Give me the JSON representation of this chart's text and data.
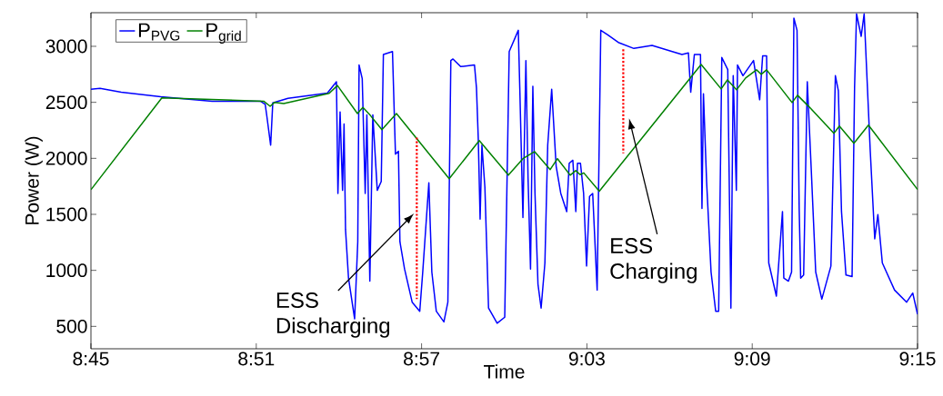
{
  "chart_data": {
    "type": "line",
    "xlabel": "Time",
    "ylabel": "Power (W)",
    "xlim": [
      8.75,
      9.25
    ],
    "ylim": [
      300,
      3300
    ],
    "xticks": [
      {
        "value": 8.75,
        "label": "8:45"
      },
      {
        "value": 8.85,
        "label": "8:51"
      },
      {
        "value": 8.95,
        "label": "8:57"
      },
      {
        "value": 9.05,
        "label": "9:03"
      },
      {
        "value": 9.15,
        "label": "9:09"
      },
      {
        "value": 9.25,
        "label": "9:15"
      }
    ],
    "yticks": [
      500,
      1000,
      1500,
      2000,
      2500,
      3000
    ],
    "legend": "top left",
    "series": [
      {
        "name": "P$_{PVG}$",
        "color": "#0000ff",
        "x": [
          8.75,
          8.7555,
          8.7683,
          8.7922,
          8.8233,
          8.8527,
          8.8554,
          8.8563,
          8.8587,
          8.86,
          8.8692,
          8.893,
          8.8985,
          8.8994,
          8.9007,
          8.9022,
          8.9031,
          8.904,
          8.9058,
          8.9095,
          8.9114,
          8.9122,
          8.9141,
          8.9159,
          8.9169,
          8.9187,
          8.9205,
          8.9232,
          8.9256,
          8.9269,
          8.9324,
          8.9342,
          8.936,
          8.9369,
          8.9397,
          8.9443,
          8.9489,
          8.9507,
          8.9544,
          8.9562,
          8.9589,
          8.9635,
          8.9659,
          8.9677,
          8.969,
          8.9736,
          8.982,
          8.9832,
          8.9843,
          8.9854,
          8.9865,
          8.9883,
          8.9905,
          8.9957,
          9.0003,
          9.003,
          9.0085,
          9.0094,
          9.0113,
          9.0131,
          9.0144,
          9.0159,
          9.0173,
          9.0186,
          9.0204,
          9.0223,
          9.0246,
          9.0263,
          9.0287,
          9.0314,
          9.0342,
          9.0378,
          9.0393,
          9.0415,
          9.0433,
          9.0443,
          9.0461,
          9.048,
          9.0498,
          9.0516,
          9.0535,
          9.0562,
          9.0584,
          9.0626,
          9.069,
          9.0784,
          9.0894,
          9.1075,
          9.1114,
          9.1128,
          9.115,
          9.1187,
          9.1196,
          9.1205,
          9.1224,
          9.1251,
          9.1279,
          9.1297,
          9.1316,
          9.1352,
          9.1371,
          9.1385,
          9.1404,
          9.1411,
          9.1444,
          9.1508,
          9.1545,
          9.1563,
          9.1587,
          9.16,
          9.1646,
          9.1683,
          9.1691,
          9.1719,
          9.1738,
          9.1752,
          9.1771,
          9.1784,
          9.1793,
          9.1811,
          9.1833,
          9.1857,
          9.1884,
          9.1921,
          9.1976,
          9.2003,
          9.2021,
          9.204,
          9.2067,
          9.2104,
          9.2119,
          9.2131,
          9.2159,
          9.2177,
          9.2214,
          9.2241,
          9.226,
          9.2287,
          9.2361,
          9.2434,
          9.2471,
          9.25
        ],
        "values": [
          2617,
          2625,
          2590,
          2550,
          2509,
          2509,
          2482,
          2388,
          2118,
          2496,
          2536,
          2582,
          2684,
          1687,
          2415,
          1714,
          2307,
          1363,
          931,
          567,
          1255,
          2833,
          2711,
          1687,
          2388,
          904,
          2388,
          1714,
          1794,
          2927,
          2954,
          2037,
          2064,
          1255,
          1012,
          716,
          635,
          985,
          1781,
          985,
          635,
          540,
          716,
          2873,
          2887,
          2819,
          2833,
          2630,
          2172,
          1457,
          2118,
          1741,
          663,
          528,
          582,
          2954,
          3143,
          2630,
          1471,
          2873,
          1822,
          1012,
          2643,
          1687,
          877,
          663,
          1066,
          2118,
          2616,
          1929,
          1687,
          1525,
          1956,
          1983,
          1525,
          1956,
          1956,
          1687,
          1039,
          1660,
          1687,
          824,
          3143,
          3103,
          3035,
          2981,
          3008,
          2927,
          2941,
          2590,
          2927,
          2927,
          1552,
          2577,
          1794,
          985,
          635,
          635,
          2900,
          2792,
          663,
          2738,
          1714,
          2833,
          2738,
          2873,
          2523,
          2914,
          2914,
          1066,
          770,
          1525,
          931,
          904,
          985,
          3251,
          3143,
          1552,
          931,
          958,
          2684,
          1902,
          985,
          743,
          1039,
          2738,
          2604,
          1525,
          958,
          944,
          2630,
          3290,
          3089,
          3290,
          2064,
          1282,
          1498,
          1066,
          824,
          716,
          797,
          608
        ]
      },
      {
        "name": "P$_{grid}$",
        "color": "#008000",
        "x": [
          8.75,
          8.7929,
          8.8545,
          8.8584,
          8.8611,
          8.8666,
          8.8941,
          8.8991,
          8.9112,
          8.9145,
          8.9189,
          8.926,
          8.9348,
          8.9667,
          8.9849,
          9.0025,
          9.0113,
          9.0184,
          9.0278,
          9.0322,
          9.0399,
          9.0432,
          9.0459,
          9.0481,
          9.0575,
          9.1191,
          9.1312,
          9.135,
          9.1405,
          9.146,
          9.1526,
          9.1554,
          9.1587,
          9.1741,
          9.1774,
          9.184,
          9.1994,
          9.2027,
          9.2115,
          9.2203,
          9.25
        ],
        "values": [
          1720,
          2540,
          2510,
          2465,
          2500,
          2490,
          2580,
          2650,
          2400,
          2455,
          2385,
          2256,
          2400,
          1818,
          2159,
          1850,
          1997,
          2060,
          1900,
          1997,
          1850,
          1890,
          1855,
          1870,
          1706,
          2838,
          2620,
          2700,
          2612,
          2717,
          2790,
          2750,
          2790,
          2498,
          2563,
          2466,
          2223,
          2288,
          2134,
          2296,
          1722
        ]
      },
      {
        "color": "#ff0000",
        "line_style": "dotted",
        "x": [
          8.9471,
          8.9471,
          9.01,
          9.072,
          9.072
        ],
        "values": [
          2186,
          743,
          null,
          2973,
          2045
        ]
      }
    ],
    "annotations": [
      "ESS Discharging",
      "ESS Charging"
    ]
  }
}
